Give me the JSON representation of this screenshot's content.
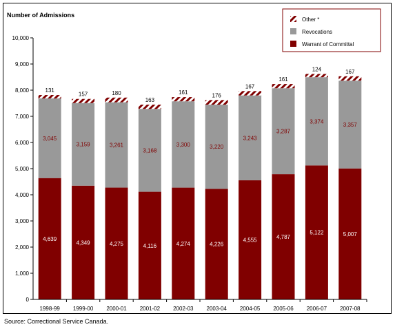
{
  "colors": {
    "warrant": "#800000",
    "revocations": "#999999",
    "other_stripe_a": "#800000",
    "other_stripe_b": "#ffffff",
    "axis": "#000000",
    "revocations_label": "#800000",
    "warrant_label": "#ffffff"
  },
  "source": "Source:  Correctional Service Canada.",
  "chart_data": {
    "type": "bar",
    "stacked": true,
    "ylabel": "Number of Admissions",
    "ylim": [
      0,
      10000
    ],
    "yticks": [
      "0",
      "1,000",
      "2,000",
      "3,000",
      "4,000",
      "5,000",
      "6,000",
      "7,000",
      "8,000",
      "9,000",
      "10,000"
    ],
    "categories": [
      "1998-99",
      "1999-00",
      "2000-01",
      "2001-02",
      "2002-03",
      "2003-04",
      "2004-05",
      "2005-06",
      "2006-07",
      "2007-08"
    ],
    "legend_position": "top-right",
    "series": [
      {
        "name": "Warrant of Committal",
        "values": [
          4639,
          4349,
          4275,
          4116,
          4274,
          4226,
          4555,
          4787,
          5122,
          5007
        ],
        "labels": [
          "4,639",
          "4,349",
          "4,275",
          "4,116",
          "4,274",
          "4,226",
          "4,555",
          "4,787",
          "5,122",
          "5,007"
        ]
      },
      {
        "name": "Revocations",
        "values": [
          3045,
          3159,
          3261,
          3168,
          3300,
          3220,
          3243,
          3287,
          3374,
          3357
        ],
        "labels": [
          "3,045",
          "3,159",
          "3,261",
          "3,168",
          "3,300",
          "3,220",
          "3,243",
          "3,287",
          "3,374",
          "3,357"
        ]
      },
      {
        "name": "Other *",
        "values": [
          131,
          157,
          180,
          163,
          161,
          176,
          167,
          161,
          124,
          167
        ],
        "labels": [
          "131",
          "157",
          "180",
          "163",
          "161",
          "176",
          "167",
          "161",
          "124",
          "167"
        ]
      }
    ]
  }
}
